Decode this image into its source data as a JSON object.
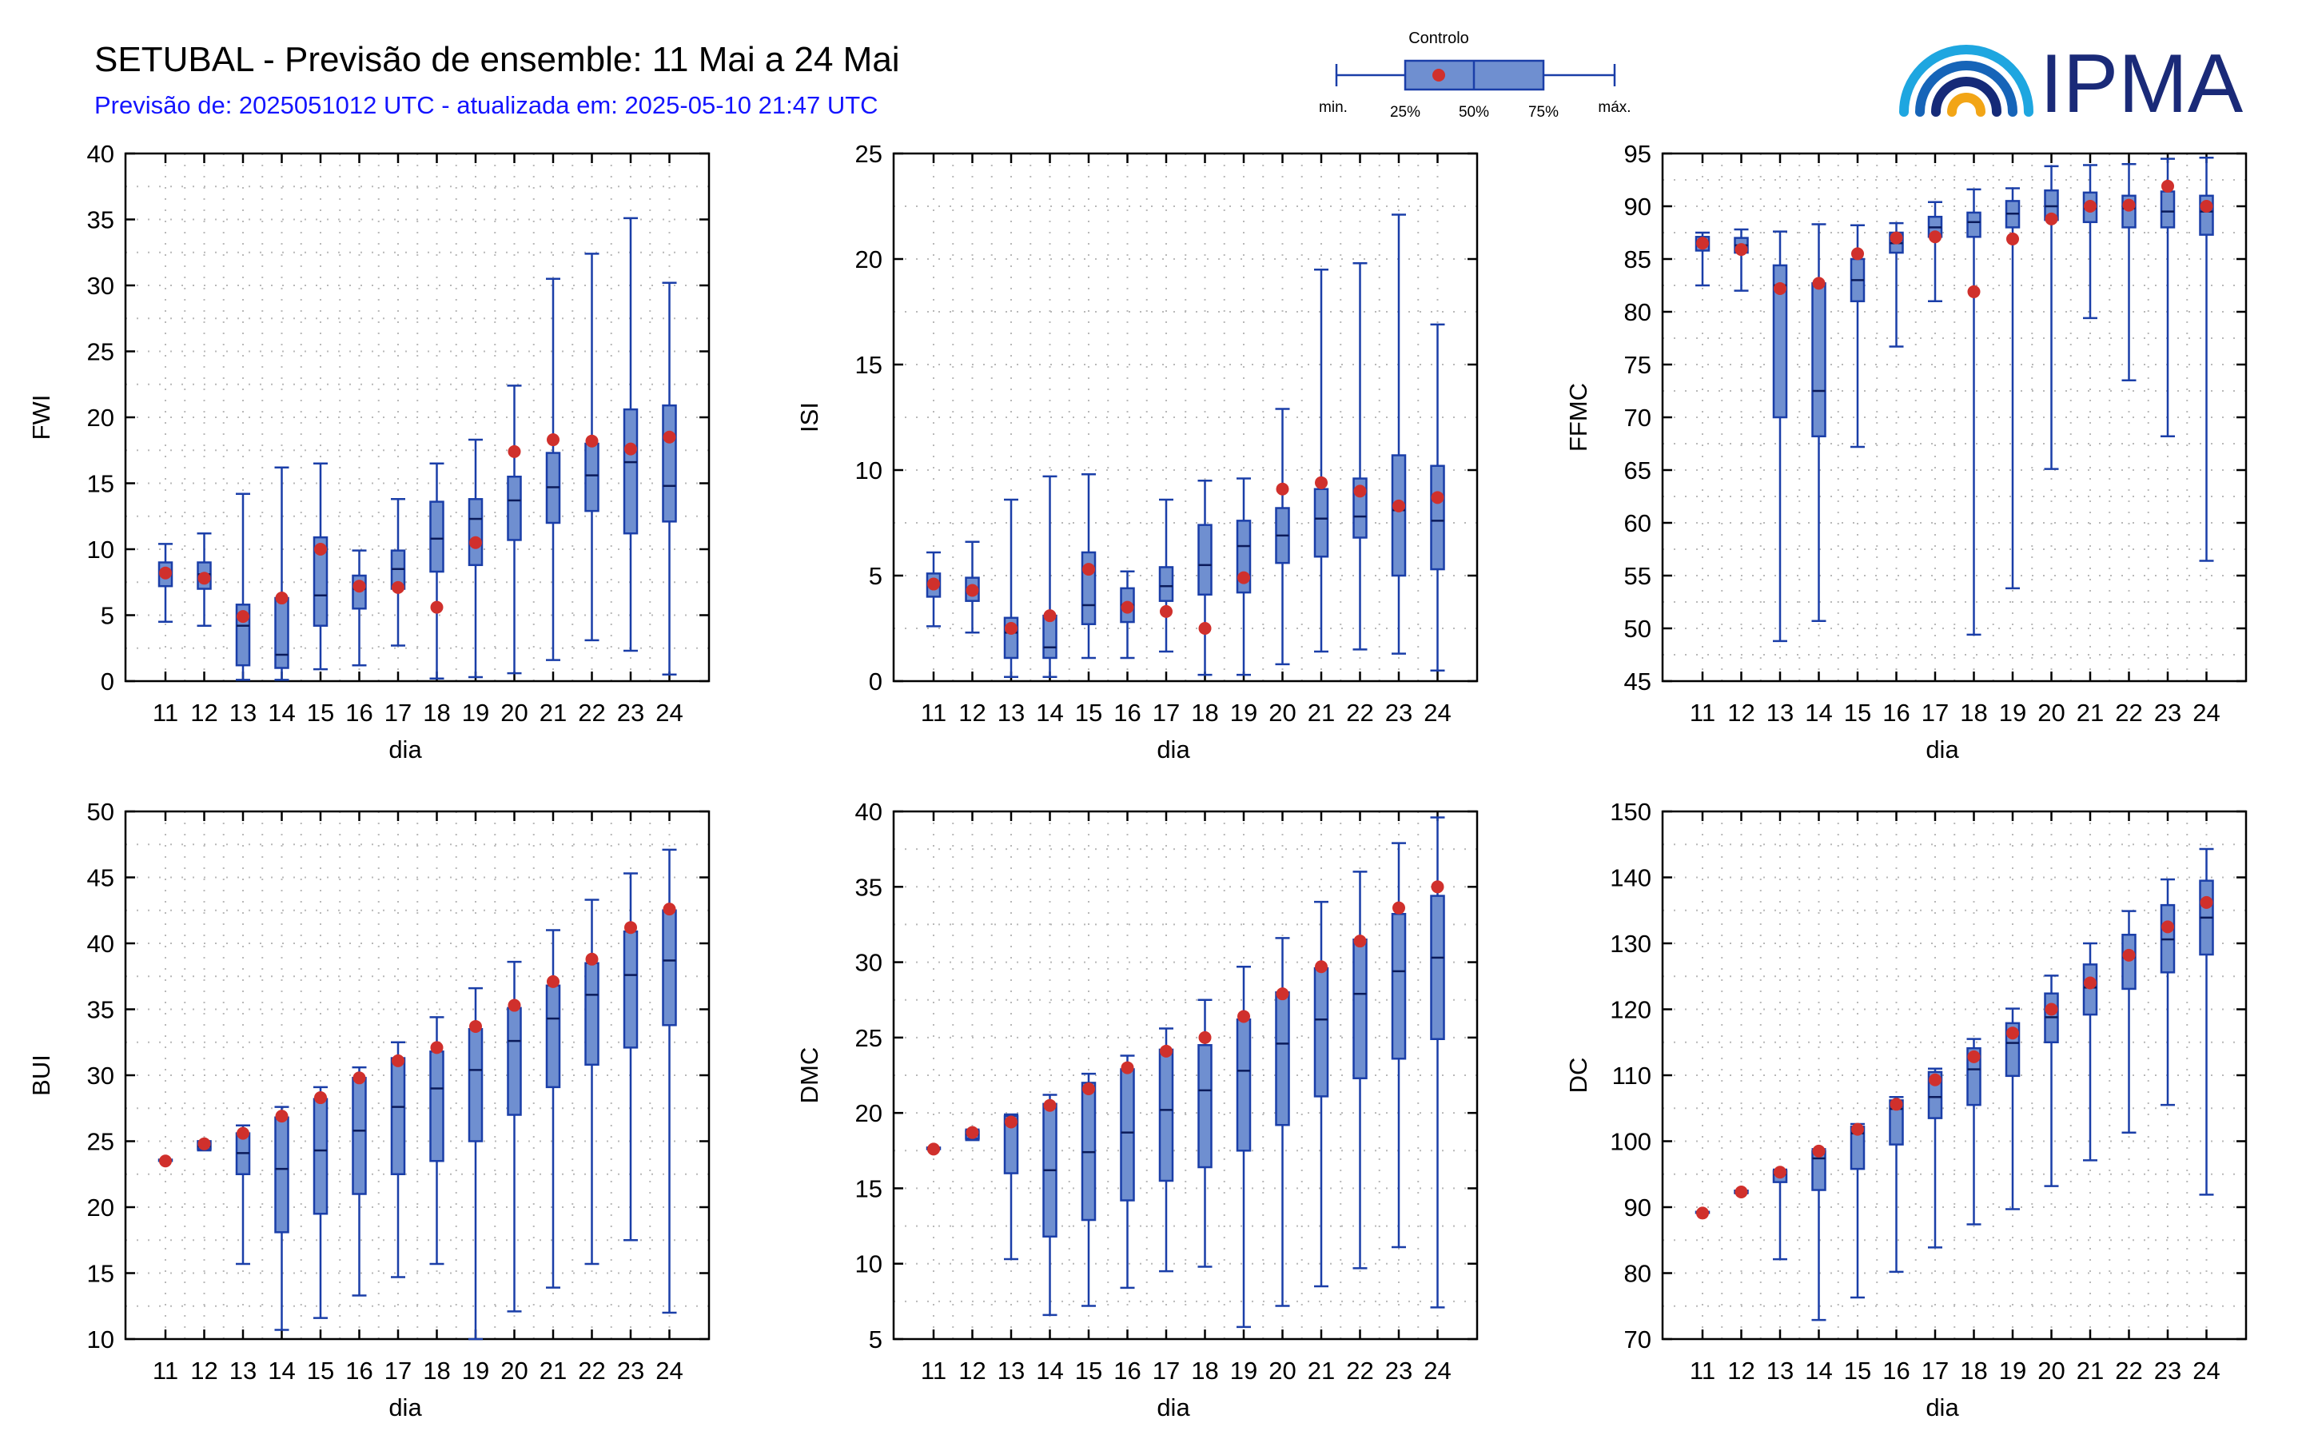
{
  "header": {
    "title": "SETUBAL - Previsão de ensemble: 11 Mai a 24 Mai",
    "subtitle": "Previsão de: 2025051012 UTC - atualizada em: 2025-05-10 21:47 UTC"
  },
  "legend": {
    "control_label": "Controlo",
    "min_label": "min.",
    "p25_label": "25%",
    "p50_label": "50%",
    "p75_label": "75%",
    "max_label": "máx."
  },
  "logo": {
    "text": "IPMA"
  },
  "colors": {
    "box_fill": "#6f8fd0",
    "box_stroke": "#1a3ea8",
    "control_dot": "#d0302c",
    "grid": "#b8b8b8"
  },
  "chart_data": [
    {
      "type": "boxplot",
      "ylabel": "FWI",
      "xlabel": "dia",
      "ylim": [
        0,
        40
      ],
      "yticks": [
        0,
        5,
        10,
        15,
        20,
        25,
        30,
        35,
        40
      ],
      "categories": [
        "11",
        "12",
        "13",
        "14",
        "15",
        "16",
        "17",
        "18",
        "19",
        "20",
        "21",
        "22",
        "23",
        "24"
      ],
      "min": [
        4.5,
        4.2,
        0.1,
        0.1,
        0.9,
        1.2,
        2.7,
        0.2,
        0.3,
        0.6,
        1.6,
        3.1,
        2.3,
        0.5
      ],
      "q1": [
        7.2,
        7.0,
        1.2,
        1.0,
        4.2,
        5.5,
        7.0,
        8.3,
        8.8,
        10.7,
        12.0,
        12.9,
        11.2,
        12.1
      ],
      "median": [
        8.2,
        8.1,
        4.2,
        2.0,
        6.5,
        7.0,
        8.5,
        10.8,
        12.3,
        13.7,
        14.7,
        15.6,
        16.6,
        14.8
      ],
      "q3": [
        9.0,
        9.0,
        5.8,
        6.3,
        10.9,
        8.0,
        9.9,
        13.6,
        13.8,
        15.5,
        17.3,
        18.0,
        20.6,
        20.9
      ],
      "max": [
        10.4,
        11.2,
        14.2,
        16.2,
        16.5,
        9.9,
        13.8,
        16.5,
        18.3,
        22.4,
        30.5,
        32.4,
        35.1,
        30.2
      ],
      "control": [
        8.2,
        7.8,
        4.9,
        6.3,
        10.0,
        7.2,
        7.1,
        5.6,
        10.5,
        17.4,
        18.3,
        18.2,
        17.6,
        18.5
      ]
    },
    {
      "type": "boxplot",
      "ylabel": "ISI",
      "xlabel": "dia",
      "ylim": [
        0,
        25
      ],
      "yticks": [
        0,
        5,
        10,
        15,
        20,
        25
      ],
      "categories": [
        "11",
        "12",
        "13",
        "14",
        "15",
        "16",
        "17",
        "18",
        "19",
        "20",
        "21",
        "22",
        "23",
        "24"
      ],
      "min": [
        2.6,
        2.3,
        0.2,
        0.2,
        1.1,
        1.1,
        1.4,
        0.3,
        0.3,
        0.8,
        1.4,
        1.5,
        1.3,
        0.5
      ],
      "q1": [
        4.0,
        3.8,
        1.1,
        1.1,
        2.7,
        2.8,
        3.8,
        4.1,
        4.2,
        5.6,
        5.9,
        6.8,
        5.0,
        5.3
      ],
      "median": [
        4.6,
        4.3,
        2.3,
        1.6,
        3.6,
        3.6,
        4.5,
        5.5,
        6.4,
        6.9,
        7.7,
        7.8,
        8.1,
        7.6
      ],
      "q3": [
        5.1,
        4.9,
        3.0,
        3.1,
        6.1,
        4.4,
        5.4,
        7.4,
        7.6,
        8.2,
        9.1,
        9.6,
        10.7,
        10.2
      ],
      "max": [
        6.1,
        6.6,
        8.6,
        9.7,
        9.8,
        5.2,
        8.6,
        9.5,
        9.6,
        12.9,
        19.5,
        19.8,
        22.1,
        16.9
      ],
      "control": [
        4.6,
        4.3,
        2.5,
        3.1,
        5.3,
        3.5,
        3.3,
        2.5,
        4.9,
        9.1,
        9.4,
        9.0,
        8.3,
        8.7
      ]
    },
    {
      "type": "boxplot",
      "ylabel": "FFMC",
      "xlabel": "dia",
      "ylim": [
        45,
        95
      ],
      "yticks": [
        45,
        50,
        55,
        60,
        65,
        70,
        75,
        80,
        85,
        90,
        95
      ],
      "categories": [
        "11",
        "12",
        "13",
        "14",
        "15",
        "16",
        "17",
        "18",
        "19",
        "20",
        "21",
        "22",
        "23",
        "24"
      ],
      "min": [
        82.5,
        82.0,
        48.8,
        50.7,
        67.2,
        76.7,
        81.0,
        49.4,
        53.8,
        65.1,
        79.4,
        73.5,
        68.2,
        56.4
      ],
      "q1": [
        85.8,
        85.6,
        70.0,
        68.2,
        81.0,
        85.6,
        87.1,
        87.1,
        88.0,
        88.7,
        88.5,
        88.0,
        88.0,
        87.3
      ],
      "median": [
        86.6,
        86.3,
        82.5,
        72.5,
        83.0,
        86.5,
        88.0,
        88.5,
        89.3,
        90.0,
        89.8,
        89.8,
        89.5,
        89.5
      ],
      "q3": [
        87.1,
        87.0,
        84.4,
        82.7,
        85.0,
        87.5,
        89.0,
        89.4,
        90.5,
        91.5,
        91.3,
        91.0,
        91.4,
        91.0
      ],
      "max": [
        87.5,
        87.8,
        87.6,
        88.3,
        88.2,
        88.4,
        90.4,
        91.6,
        91.7,
        93.8,
        93.9,
        94.0,
        94.5,
        94.6
      ],
      "control": [
        86.5,
        85.9,
        82.2,
        82.7,
        85.5,
        87.0,
        87.1,
        81.9,
        86.9,
        88.8,
        90.0,
        90.1,
        91.9,
        90.0
      ]
    },
    {
      "type": "boxplot",
      "ylabel": "BUI",
      "xlabel": "dia",
      "ylim": [
        10,
        50
      ],
      "yticks": [
        10,
        15,
        20,
        25,
        30,
        35,
        40,
        45,
        50
      ],
      "categories": [
        "11",
        "12",
        "13",
        "14",
        "15",
        "16",
        "17",
        "18",
        "19",
        "20",
        "21",
        "22",
        "23",
        "24"
      ],
      "min": [
        23.5,
        24.3,
        15.7,
        10.7,
        11.6,
        13.3,
        14.7,
        15.7,
        10.0,
        12.1,
        13.9,
        15.7,
        17.5,
        12.0
      ],
      "q1": [
        23.5,
        24.4,
        22.5,
        18.1,
        19.5,
        21.0,
        22.5,
        23.5,
        25.0,
        27.0,
        29.1,
        30.8,
        32.1,
        33.8
      ],
      "median": [
        23.5,
        24.6,
        24.1,
        22.9,
        24.3,
        25.8,
        27.6,
        29.0,
        30.4,
        32.6,
        34.3,
        36.1,
        37.6,
        38.7
      ],
      "q3": [
        23.6,
        25.0,
        25.6,
        26.8,
        28.2,
        29.8,
        31.3,
        31.8,
        33.5,
        35.1,
        36.8,
        38.5,
        40.9,
        42.5
      ],
      "max": [
        23.6,
        25.0,
        26.2,
        27.6,
        29.1,
        30.6,
        32.5,
        34.4,
        36.6,
        38.6,
        41.0,
        43.3,
        45.3,
        47.1
      ],
      "control": [
        23.5,
        24.8,
        25.6,
        26.9,
        28.3,
        29.8,
        31.1,
        32.1,
        33.7,
        35.3,
        37.1,
        38.8,
        41.2,
        42.6
      ]
    },
    {
      "type": "boxplot",
      "ylabel": "DMC",
      "xlabel": "dia",
      "ylim": [
        5,
        40
      ],
      "yticks": [
        5,
        10,
        15,
        20,
        25,
        30,
        35,
        40
      ],
      "categories": [
        "11",
        "12",
        "13",
        "14",
        "15",
        "16",
        "17",
        "18",
        "19",
        "20",
        "21",
        "22",
        "23",
        "24"
      ],
      "min": [
        17.6,
        18.2,
        10.3,
        6.6,
        7.2,
        8.4,
        9.5,
        9.8,
        5.8,
        7.2,
        8.5,
        9.7,
        11.1,
        7.1
      ],
      "q1": [
        17.6,
        18.3,
        16.0,
        11.8,
        12.9,
        14.2,
        15.5,
        16.4,
        17.5,
        19.2,
        21.1,
        22.3,
        23.6,
        24.9
      ],
      "median": [
        17.6,
        18.6,
        19.3,
        16.2,
        17.4,
        18.7,
        20.2,
        21.5,
        22.8,
        24.6,
        26.2,
        27.9,
        29.4,
        30.3
      ],
      "q3": [
        17.7,
        18.8,
        19.8,
        20.6,
        22.0,
        22.9,
        24.2,
        24.5,
        26.2,
        28.0,
        29.6,
        31.5,
        33.2,
        34.4
      ],
      "max": [
        17.7,
        18.9,
        19.9,
        21.2,
        22.6,
        23.8,
        25.6,
        27.5,
        29.7,
        31.6,
        34.0,
        36.0,
        37.9,
        39.6
      ],
      "control": [
        17.6,
        18.7,
        19.4,
        20.5,
        21.6,
        23.0,
        24.1,
        25.0,
        26.4,
        27.9,
        29.7,
        31.4,
        33.6,
        35.0
      ]
    },
    {
      "type": "boxplot",
      "ylabel": "DC",
      "xlabel": "dia",
      "ylim": [
        70,
        150
      ],
      "yticks": [
        70,
        80,
        90,
        100,
        110,
        120,
        130,
        140,
        150
      ],
      "categories": [
        "11",
        "12",
        "13",
        "14",
        "15",
        "16",
        "17",
        "18",
        "19",
        "20",
        "21",
        "22",
        "23",
        "24"
      ],
      "min": [
        89.2,
        92.1,
        82.1,
        72.9,
        76.3,
        80.2,
        83.9,
        87.4,
        89.7,
        93.2,
        97.1,
        101.3,
        105.5,
        91.9
      ],
      "q1": [
        89.2,
        92.2,
        93.8,
        92.6,
        95.8,
        99.5,
        103.5,
        105.5,
        109.9,
        115.0,
        119.2,
        123.1,
        125.6,
        128.3
      ],
      "median": [
        89.2,
        92.3,
        95.0,
        97.4,
        101.2,
        104.9,
        106.7,
        110.9,
        114.9,
        118.8,
        123.3,
        127.9,
        130.6,
        133.9
      ],
      "q3": [
        89.3,
        92.5,
        95.5,
        98.5,
        102.2,
        106.2,
        110.5,
        114.1,
        117.9,
        122.4,
        126.8,
        131.3,
        135.8,
        139.5
      ],
      "max": [
        89.3,
        92.5,
        95.7,
        98.8,
        102.6,
        106.7,
        111.0,
        115.5,
        120.1,
        125.1,
        130.0,
        134.9,
        139.7,
        144.3
      ],
      "control": [
        89.1,
        92.3,
        95.3,
        98.5,
        101.8,
        105.6,
        109.3,
        112.8,
        116.4,
        120.0,
        124.0,
        128.2,
        132.5,
        136.2
      ]
    }
  ]
}
